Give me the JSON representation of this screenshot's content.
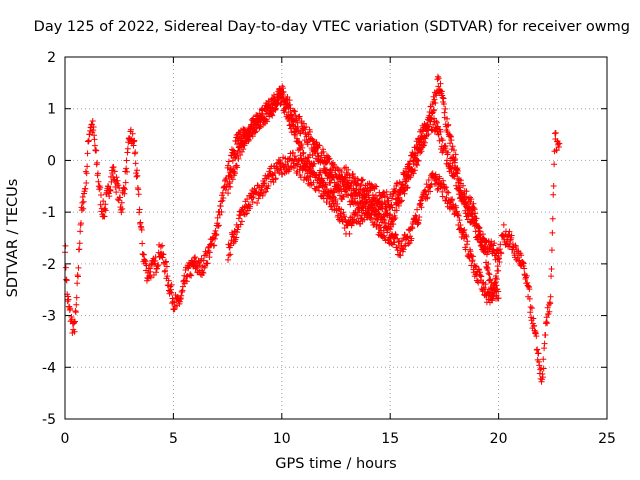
{
  "chart_data": {
    "type": "scatter",
    "title": "Day 125 of 2022, Sidereal Day-to-day VTEC variation (SDTVAR) for receiver owmg",
    "xlabel": "GPS time / hours",
    "ylabel": "SDTVAR / TECUs",
    "xlim": [
      0,
      25
    ],
    "ylim": [
      -5,
      2
    ],
    "xticks": [
      0,
      5,
      10,
      15,
      20,
      25
    ],
    "yticks": [
      -5,
      -4,
      -3,
      -2,
      -1,
      0,
      1,
      2
    ],
    "grid": true,
    "marker": "+",
    "series_color": "#ff0000",
    "series": [
      {
        "name": "SDTVAR",
        "x": [
          0.0,
          0.1,
          0.2,
          0.3,
          0.4,
          0.5,
          0.6,
          0.7,
          0.8,
          0.9,
          1.0,
          1.1,
          1.2,
          1.3,
          1.4,
          1.5,
          1.6,
          1.7,
          1.8,
          1.9,
          2.0,
          2.2,
          2.4,
          2.6,
          2.8,
          3.0,
          3.2,
          3.4,
          3.6,
          3.8,
          4.0,
          4.2,
          4.4,
          4.6,
          4.8,
          5.0,
          5.2,
          5.4,
          5.6,
          5.8,
          6.0,
          6.2,
          6.4,
          6.6,
          6.8,
          7.0,
          7.2,
          7.4,
          7.6,
          7.8,
          8.0,
          8.2,
          8.4,
          8.6,
          8.8,
          9.0,
          9.2,
          9.4,
          9.6,
          9.8,
          10.0,
          10.2,
          10.4,
          10.6,
          10.8,
          11.0,
          11.2,
          11.4,
          11.6,
          11.8,
          12.0,
          12.2,
          12.4,
          12.6,
          12.8,
          13.0,
          13.2,
          13.4,
          13.6,
          13.8,
          14.0,
          14.2,
          14.4,
          14.6,
          14.8,
          15.0,
          15.2,
          15.4,
          15.6,
          15.8,
          16.0,
          16.2,
          16.4,
          16.6,
          16.8,
          17.0,
          17.2,
          17.4,
          17.6,
          17.8,
          18.0,
          18.2,
          18.4,
          18.6,
          18.8,
          19.0,
          19.2,
          19.4,
          19.6,
          19.8,
          20.0,
          20.2,
          20.4,
          20.6,
          20.8,
          21.0,
          21.2,
          21.4,
          21.6,
          21.8,
          22.0,
          22.2,
          22.4,
          22.6,
          22.8
        ],
        "y": [
          -1.6,
          -2.6,
          -2.9,
          -3.1,
          -3.3,
          -3.0,
          -2.2,
          -1.3,
          -0.9,
          -0.6,
          -0.2,
          0.5,
          0.7,
          0.6,
          0.2,
          -0.2,
          -0.6,
          -0.9,
          -1.0,
          -0.8,
          -0.6,
          -0.2,
          -0.5,
          -0.9,
          -0.3,
          0.5,
          0.3,
          -0.8,
          -1.8,
          -2.2,
          -2.1,
          -2.0,
          -1.7,
          -2.0,
          -2.4,
          -2.7,
          -2.8,
          -2.6,
          -2.2,
          -2.1,
          -2.0,
          -2.1,
          -2.0,
          -1.8,
          -1.6,
          -1.3,
          -0.9,
          -0.5,
          -0.1,
          0.2,
          0.4,
          0.5,
          0.5,
          0.6,
          0.7,
          0.8,
          0.9,
          1.0,
          1.1,
          1.2,
          1.2,
          1.0,
          0.8,
          0.5,
          0.3,
          0.1,
          -0.1,
          0.0,
          0.2,
          -0.4,
          -0.3,
          -0.4,
          -0.5,
          -0.5,
          -0.6,
          -0.6,
          -0.7,
          -0.7,
          -0.8,
          -0.8,
          -1.0,
          -0.9,
          -0.9,
          -1.0,
          -1.1,
          -1.2,
          -1.0,
          -0.8,
          -0.6,
          -0.4,
          -0.2,
          0.0,
          0.3,
          0.5,
          0.8,
          1.1,
          1.5,
          1.2,
          0.7,
          0.3,
          0.0,
          -0.4,
          -0.7,
          -0.8,
          -0.9,
          -1.3,
          -1.5,
          -1.8,
          -2.3,
          -2.5,
          -2.0,
          -1.4,
          -1.5,
          -1.6,
          -1.8,
          -1.9,
          -2.2,
          -2.6,
          -3.2,
          -3.7,
          -4.3,
          -3.2,
          -2.6,
          0.4,
          0.2
        ],
        "upper_branch_x": [
          7.5,
          8.0,
          8.5,
          9.0,
          9.5,
          10.0,
          10.5,
          11.0,
          11.5,
          12.0,
          12.5,
          13.0,
          13.5,
          14.0,
          14.5,
          15.0,
          15.5,
          16.0,
          16.5,
          17.0,
          17.5,
          18.0,
          18.5,
          19.0,
          19.5,
          20.0
        ],
        "upper_branch_y": [
          -0.5,
          0.1,
          0.6,
          0.8,
          1.0,
          1.3,
          0.9,
          0.6,
          0.3,
          0.0,
          -0.3,
          -0.3,
          -0.5,
          -0.6,
          -0.7,
          -0.8,
          -0.5,
          0.0,
          0.5,
          0.8,
          0.2,
          -0.3,
          -0.9,
          -1.4,
          -1.7,
          -1.8
        ],
        "lower_branch_x": [
          7.5,
          8.0,
          8.5,
          9.0,
          9.5,
          10.0,
          10.5,
          11.0,
          11.5,
          12.0,
          12.5,
          13.0,
          13.5,
          14.0,
          14.5,
          15.0,
          15.5,
          16.0,
          16.5,
          17.0,
          17.5,
          18.0,
          18.5,
          19.0,
          19.5,
          20.0
        ],
        "lower_branch_y": [
          -1.8,
          -1.2,
          -0.8,
          -0.6,
          -0.3,
          -0.1,
          0.0,
          -0.2,
          -0.4,
          -0.6,
          -0.9,
          -1.3,
          -1.1,
          -0.9,
          -1.3,
          -1.5,
          -1.7,
          -1.4,
          -0.8,
          -0.3,
          -0.6,
          -1.0,
          -1.6,
          -2.2,
          -2.6,
          -2.5
        ]
      }
    ]
  }
}
